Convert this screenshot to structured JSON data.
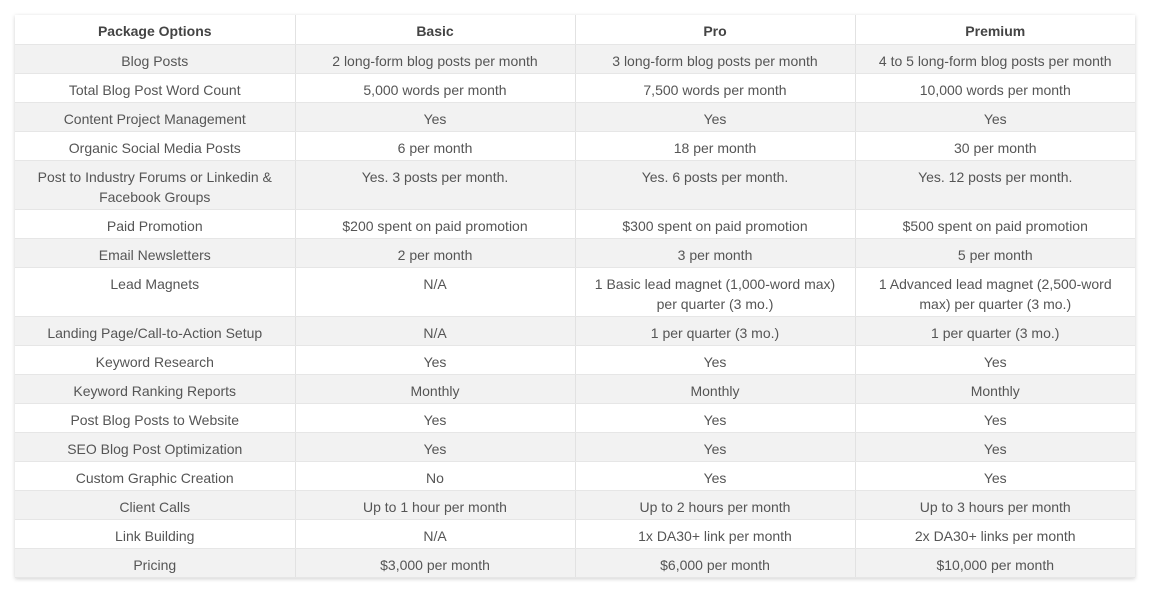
{
  "headers": [
    "Package Options",
    "Basic",
    "Pro",
    "Premium"
  ],
  "rows": [
    [
      "Blog Posts",
      "2 long-form blog posts per month",
      "3 long-form blog posts per month",
      "4 to 5 long-form blog posts per month"
    ],
    [
      "Total Blog Post Word Count",
      "5,000 words per month",
      "7,500 words per month",
      "10,000 words per month"
    ],
    [
      "Content Project Management",
      "Yes",
      "Yes",
      "Yes"
    ],
    [
      "Organic Social Media Posts",
      "6 per month",
      "18 per month",
      "30 per month"
    ],
    [
      "Post to Industry Forums or Linkedin & Facebook Groups",
      "Yes. 3 posts per month.",
      "Yes. 6 posts per month.",
      "Yes. 12 posts per month."
    ],
    [
      "Paid Promotion",
      "$200 spent on paid promotion",
      "$300 spent on paid promotion",
      "$500 spent on paid promotion"
    ],
    [
      "Email Newsletters",
      "2 per month",
      "3 per month",
      "5 per month"
    ],
    [
      "Lead Magnets",
      "N/A",
      "1 Basic lead magnet (1,000-word max) per quarter (3 mo.)",
      "1 Advanced lead magnet (2,500-word max) per quarter (3 mo.)"
    ],
    [
      "Landing Page/Call-to-Action Setup",
      "N/A",
      "1 per quarter (3 mo.)",
      "1 per quarter (3 mo.)"
    ],
    [
      "Keyword Research",
      "Yes",
      "Yes",
      "Yes"
    ],
    [
      "Keyword Ranking Reports",
      "Monthly",
      "Monthly",
      "Monthly"
    ],
    [
      "Post Blog Posts to Website",
      "Yes",
      "Yes",
      "Yes"
    ],
    [
      "SEO Blog Post Optimization",
      "Yes",
      "Yes",
      "Yes"
    ],
    [
      "Custom Graphic Creation",
      "No",
      "Yes",
      "Yes"
    ],
    [
      "Client Calls",
      "Up to 1 hour per month",
      "Up to 2 hours per month",
      "Up to 3 hours per month"
    ],
    [
      "Link Building",
      "N/A",
      "1x DA30+ link per month",
      "2x DA30+ links per month"
    ],
    [
      "Pricing",
      "$3,000 per month",
      "$6,000 per month",
      "$10,000 per month"
    ]
  ]
}
